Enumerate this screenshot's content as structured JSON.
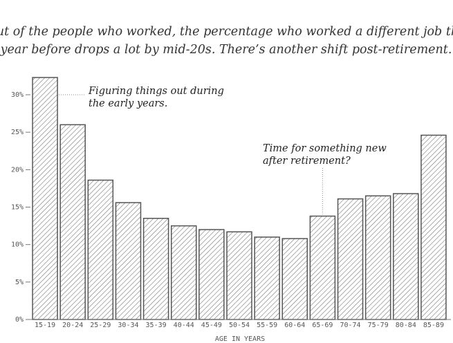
{
  "chart_data": {
    "type": "bar",
    "title": [
      "Out of the people who worked, the percentage who worked a different job the",
      "year before drops a lot by mid-20s. There’s another shift post-retirement."
    ],
    "x_label": "AGE IN YEARS",
    "categories": [
      "15-19",
      "20-24",
      "25-29",
      "30-34",
      "35-39",
      "40-44",
      "45-49",
      "50-54",
      "55-59",
      "60-64",
      "65-69",
      "70-74",
      "75-79",
      "80-84",
      "85-89"
    ],
    "values": [
      32.3,
      26.0,
      18.6,
      15.6,
      13.5,
      12.5,
      12.0,
      11.7,
      11.0,
      10.8,
      13.8,
      16.1,
      16.5,
      16.8,
      24.6
    ],
    "color": "#555555",
    "ylim": [
      0,
      33
    ],
    "yticks": [
      {
        "value": 0,
        "label": "0%"
      },
      {
        "value": 5,
        "label": "5%"
      },
      {
        "value": 10,
        "label": "10%"
      },
      {
        "value": 15,
        "label": "15%"
      },
      {
        "value": 20,
        "label": "20%"
      },
      {
        "value": 25,
        "label": "25%"
      },
      {
        "value": 30,
        "label": "30%"
      }
    ],
    "annotations": [
      {
        "text": [
          "Figuring things out during",
          "the early years."
        ],
        "category": "15-19"
      },
      {
        "text": [
          "Time for something new",
          "after retirement?"
        ],
        "category": "65-69"
      }
    ]
  }
}
